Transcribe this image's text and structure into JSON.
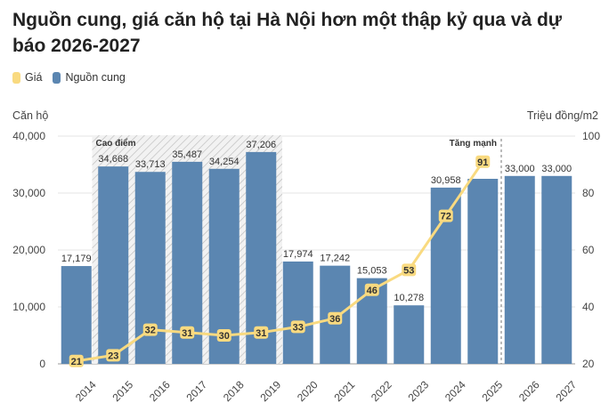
{
  "chart_data": {
    "type": "bar",
    "title": "Nguồn cung, giá căn hộ tại Hà Nội hơn một thập kỷ qua và dự báo 2026-2027",
    "categories": [
      "2014",
      "2015",
      "2016",
      "2017",
      "2018",
      "2019",
      "2020",
      "2021",
      "2022",
      "2023",
      "2024",
      "2025",
      "2026",
      "2027"
    ],
    "series": [
      {
        "name": "Nguồn cung",
        "type": "bar",
        "axis": "left",
        "values": [
          17179,
          34668,
          33713,
          35487,
          34254,
          37206,
          17974,
          17242,
          15053,
          10278,
          30958,
          32500,
          33000,
          33000
        ],
        "value_labels": [
          "17,179",
          "34,668",
          "33,713",
          "35,487",
          "34,254",
          "37,206",
          "17,974",
          "17,242",
          "15,053",
          "10,278",
          "30,958",
          "",
          "33,000",
          "33,000"
        ]
      },
      {
        "name": "Giá",
        "type": "line",
        "axis": "right",
        "values": [
          21,
          23,
          32,
          31,
          30,
          31,
          33,
          36,
          46,
          53,
          72,
          91,
          null,
          null
        ]
      }
    ],
    "ylabel": "Căn hộ",
    "y2label": "Triệu đồng/m2",
    "ylim": [
      0,
      40000
    ],
    "y2lim": [
      20,
      100
    ],
    "yticks": [
      "0",
      "10,000",
      "20,000",
      "30,000",
      "40,000"
    ],
    "y2ticks": [
      "20",
      "40",
      "60",
      "80",
      "100"
    ],
    "legend_position": "top-left",
    "annotations": {
      "peak_label": "Cao điểm",
      "surge_label": "Tăng mạnh"
    },
    "colors": {
      "bar": "#5b86b1",
      "line": "#f9da80",
      "peak_hatch": "#bbbbbb"
    }
  }
}
